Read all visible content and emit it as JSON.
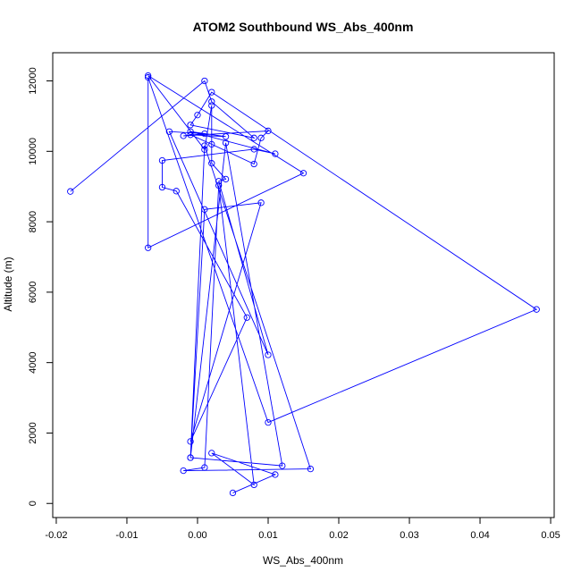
{
  "chart_data": {
    "type": "line",
    "title": "ATOM2 Southbound WS_Abs_400nm",
    "xlabel": "WS_Abs_400nm",
    "ylabel": "Altitude (m)",
    "xlim": [
      -0.0205,
      0.0505
    ],
    "ylim": [
      -400,
      12800
    ],
    "xticks": [
      -0.02,
      -0.01,
      0.0,
      0.01,
      0.02,
      0.03,
      0.04,
      0.05
    ],
    "xtick_labels": [
      "-0.02",
      "-0.01",
      "0.00",
      "0.01",
      "0.02",
      "0.03",
      "0.04",
      "0.05"
    ],
    "yticks": [
      0,
      2000,
      4000,
      6000,
      8000,
      10000,
      12000
    ],
    "ytick_labels": [
      "0",
      "2000",
      "4000",
      "6000",
      "8000",
      "10000",
      "12000"
    ],
    "grid": false,
    "line_color": "#0000ff",
    "marker": "open-circle",
    "series": [
      {
        "x": [
          0.005,
          0.011,
          0.002,
          0.008,
          0.003,
          0.001,
          -0.002,
          0.016,
          0.001,
          -0.001,
          0.012,
          0.004,
          -0.001,
          0.001,
          0.009,
          -0.001,
          0.007,
          -0.003,
          -0.005,
          -0.005,
          0.008,
          0.011,
          -0.001,
          0.004,
          -0.001,
          0.002,
          0.008,
          0.009,
          0.01,
          -0.002,
          0.001,
          -0.004,
          0.01,
          0.003,
          0.004,
          0.002,
          0.002,
          0.001,
          -0.007,
          0.015,
          -0.007,
          -0.007,
          0.01,
          0.048,
          0.002,
          0.0,
          -0.001,
          0.008,
          0.002,
          0.001,
          -0.018
        ],
        "y": [
          300,
          820,
          1430,
          530,
          9030,
          1020,
          930,
          980,
          10160,
          1300,
          1070,
          10240,
          1300,
          8350,
          8540,
          1760,
          5280,
          8870,
          8980,
          9740,
          10060,
          9930,
          10560,
          10420,
          10470,
          10200,
          9640,
          10380,
          10580,
          10440,
          10500,
          10560,
          4220,
          9150,
          9210,
          9660,
          11300,
          10050,
          12150,
          9380,
          7260,
          12100,
          2300,
          5510,
          11680,
          11030,
          10750,
          10380,
          11410,
          12000,
          8860
        ]
      }
    ]
  }
}
